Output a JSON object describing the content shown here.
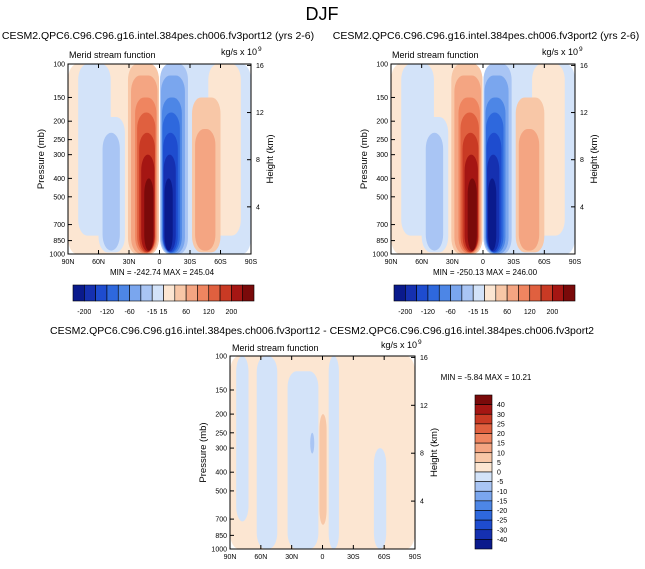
{
  "figure": {
    "title": "DJF"
  },
  "colormaps": {
    "top": [
      "#0a1a8c",
      "#1530b0",
      "#1e4ccf",
      "#2e68dd",
      "#4d86e6",
      "#7aa6ee",
      "#a9c5f4",
      "#d3e3f9",
      "#fce6d2",
      "#f8c7a7",
      "#f4a582",
      "#ef8560",
      "#e0603f",
      "#c93a24",
      "#a51613",
      "#7a0a0a"
    ],
    "diff": [
      "#0a1a8c",
      "#1530b0",
      "#1e4ccf",
      "#2e68dd",
      "#4d86e6",
      "#7aa6ee",
      "#a9c5f4",
      "#d3e3f9",
      "#fce6d2",
      "#f8c7a7",
      "#f4a582",
      "#ef8560",
      "#e0603f",
      "#c93a24",
      "#a51613",
      "#7a0a0a"
    ]
  },
  "chart_data": [
    {
      "type": "contour",
      "id": "panel1",
      "title": "CESM2.QPC6.C96.C96.g16.intel.384pes.ch006.fv3port12 (yrs 2-6)",
      "subtitle_left": "Merid stream function",
      "units": "kg/s x 10",
      "units_exp": "9",
      "xlabel": "",
      "ylabel": "Pressure (mb)",
      "ylabel_right": "Height (km)",
      "x_ticks": [
        "90N",
        "60N",
        "30N",
        "0",
        "30S",
        "60S",
        "90S"
      ],
      "x_tick_values": [
        90,
        60,
        30,
        0,
        -30,
        -60,
        -90
      ],
      "y_ticks": [
        "100",
        "150",
        "200",
        "250",
        "300",
        "400",
        "500",
        "700",
        "850",
        "1000"
      ],
      "y_tick_values": [
        100,
        150,
        200,
        250,
        300,
        400,
        500,
        700,
        850,
        1000
      ],
      "yr_ticks": [
        "4",
        "8",
        "12",
        "16"
      ],
      "yr_tick_values": [
        4,
        8,
        12,
        16
      ],
      "ylim": [
        1000,
        100
      ],
      "xlim": [
        90,
        -90
      ],
      "min": "-242.74",
      "max": "245.04",
      "stats": "MIN = -242.74  MAX = 245.04",
      "colorbar_labels": [
        "-200",
        "-120",
        "-60",
        "-15",
        "15",
        "60",
        "120",
        "200"
      ],
      "cells": [
        {
          "lat_min": 90,
          "lat_max": 0.5,
          "lev_top": 100,
          "lev_bot": 1000,
          "level": 8
        },
        {
          "lat_min": -0.5,
          "lat_max": -90,
          "lev_top": 100,
          "lev_bot": 1000,
          "level": 7
        },
        {
          "lat_min": 80,
          "lat_max": 48,
          "lev_top": 100,
          "lev_bot": 800,
          "level": 7
        },
        {
          "lat_min": -48,
          "lat_max": -80,
          "lev_top": 100,
          "lev_bot": 800,
          "level": 8
        },
        {
          "lat_min": 60,
          "lat_max": 34,
          "lev_top": 190,
          "lev_bot": 980,
          "level": 7
        },
        {
          "lat_min": 56,
          "lat_max": 39,
          "lev_top": 230,
          "lev_bot": 960,
          "level": 6
        },
        {
          "lat_min": -32,
          "lat_max": -60,
          "lev_top": 150,
          "lev_bot": 980,
          "level": 9
        },
        {
          "lat_min": -35,
          "lat_max": -55,
          "lev_top": 220,
          "lev_bot": 960,
          "level": 10
        },
        {
          "lat_min": 31,
          "lat_max": 0.5,
          "lev_top": 100,
          "lev_bot": 1000,
          "level": 9
        },
        {
          "lat_min": 28,
          "lat_max": 2,
          "lev_top": 115,
          "lev_bot": 995,
          "level": 10
        },
        {
          "lat_min": 24,
          "lat_max": 3,
          "lev_top": 150,
          "lev_bot": 990,
          "level": 11
        },
        {
          "lat_min": 22,
          "lat_max": 4,
          "lev_top": 180,
          "lev_bot": 985,
          "level": 12
        },
        {
          "lat_min": 20,
          "lat_max": 4.5,
          "lev_top": 230,
          "lev_bot": 980,
          "level": 13
        },
        {
          "lat_min": 18,
          "lat_max": 5,
          "lev_top": 300,
          "lev_bot": 970,
          "level": 14
        },
        {
          "lat_min": 15,
          "lat_max": 6,
          "lev_top": 400,
          "lev_bot": 960,
          "level": 15
        },
        {
          "lat_min": -0.5,
          "lat_max": -28,
          "lev_top": 100,
          "lev_bot": 1000,
          "level": 6
        },
        {
          "lat_min": -1.5,
          "lat_max": -25,
          "lev_top": 115,
          "lev_bot": 995,
          "level": 5
        },
        {
          "lat_min": -2.5,
          "lat_max": -22,
          "lev_top": 150,
          "lev_bot": 990,
          "level": 4
        },
        {
          "lat_min": -3,
          "lat_max": -20,
          "lev_top": 180,
          "lev_bot": 985,
          "level": 3
        },
        {
          "lat_min": -3.5,
          "lat_max": -18,
          "lev_top": 230,
          "lev_bot": 980,
          "level": 2
        },
        {
          "lat_min": -4,
          "lat_max": -16,
          "lev_top": 300,
          "lev_bot": 970,
          "level": 1
        },
        {
          "lat_min": -5,
          "lat_max": -13,
          "lev_top": 400,
          "lev_bot": 960,
          "level": 0
        }
      ]
    },
    {
      "type": "contour",
      "id": "panel2",
      "title": "CESM2.QPC6.C96.C96.g16.intel.384pes.ch006.fv3port2 (yrs 2-6)",
      "subtitle_left": "Merid stream function",
      "units": "kg/s x 10",
      "units_exp": "9",
      "xlabel": "",
      "ylabel": "Pressure (mb)",
      "ylabel_right": "Height (km)",
      "x_ticks": [
        "90N",
        "60N",
        "30N",
        "0",
        "30S",
        "60S",
        "90S"
      ],
      "x_tick_values": [
        90,
        60,
        30,
        0,
        -30,
        -60,
        -90
      ],
      "y_ticks": [
        "100",
        "150",
        "200",
        "250",
        "300",
        "400",
        "500",
        "700",
        "850",
        "1000"
      ],
      "y_tick_values": [
        100,
        150,
        200,
        250,
        300,
        400,
        500,
        700,
        850,
        1000
      ],
      "yr_ticks": [
        "4",
        "8",
        "12",
        "16"
      ],
      "yr_tick_values": [
        4,
        8,
        12,
        16
      ],
      "ylim": [
        1000,
        100
      ],
      "xlim": [
        90,
        -90
      ],
      "min": "-250.13",
      "max": "246.00",
      "stats": "MIN = -250.13  MAX = 246.00",
      "colorbar_labels": [
        "-200",
        "-120",
        "-60",
        "-15",
        "15",
        "60",
        "120",
        "200"
      ],
      "cells": [
        {
          "lat_min": 90,
          "lat_max": 0.5,
          "lev_top": 100,
          "lev_bot": 1000,
          "level": 8
        },
        {
          "lat_min": -0.5,
          "lat_max": -90,
          "lev_top": 100,
          "lev_bot": 1000,
          "level": 7
        },
        {
          "lat_min": 80,
          "lat_max": 48,
          "lev_top": 100,
          "lev_bot": 800,
          "level": 7
        },
        {
          "lat_min": -48,
          "lat_max": -80,
          "lev_top": 100,
          "lev_bot": 800,
          "level": 8
        },
        {
          "lat_min": 60,
          "lat_max": 34,
          "lev_top": 190,
          "lev_bot": 980,
          "level": 7
        },
        {
          "lat_min": 56,
          "lat_max": 39,
          "lev_top": 230,
          "lev_bot": 960,
          "level": 6
        },
        {
          "lat_min": -32,
          "lat_max": -60,
          "lev_top": 150,
          "lev_bot": 980,
          "level": 9
        },
        {
          "lat_min": -35,
          "lat_max": -55,
          "lev_top": 220,
          "lev_bot": 960,
          "level": 10
        },
        {
          "lat_min": 31,
          "lat_max": 0.5,
          "lev_top": 100,
          "lev_bot": 1000,
          "level": 9
        },
        {
          "lat_min": 28,
          "lat_max": 2,
          "lev_top": 115,
          "lev_bot": 995,
          "level": 10
        },
        {
          "lat_min": 24,
          "lat_max": 3,
          "lev_top": 150,
          "lev_bot": 990,
          "level": 11
        },
        {
          "lat_min": 22,
          "lat_max": 4,
          "lev_top": 180,
          "lev_bot": 985,
          "level": 12
        },
        {
          "lat_min": 20,
          "lat_max": 4.5,
          "lev_top": 230,
          "lev_bot": 980,
          "level": 13
        },
        {
          "lat_min": 18,
          "lat_max": 5,
          "lev_top": 300,
          "lev_bot": 970,
          "level": 14
        },
        {
          "lat_min": 15,
          "lat_max": 6,
          "lev_top": 400,
          "lev_bot": 960,
          "level": 15
        },
        {
          "lat_min": -0.5,
          "lat_max": -28,
          "lev_top": 100,
          "lev_bot": 1000,
          "level": 6
        },
        {
          "lat_min": -1.5,
          "lat_max": -25,
          "lev_top": 115,
          "lev_bot": 995,
          "level": 5
        },
        {
          "lat_min": -2.5,
          "lat_max": -22,
          "lev_top": 150,
          "lev_bot": 990,
          "level": 4
        },
        {
          "lat_min": -3,
          "lat_max": -20,
          "lev_top": 180,
          "lev_bot": 985,
          "level": 3
        },
        {
          "lat_min": -3.5,
          "lat_max": -18,
          "lev_top": 230,
          "lev_bot": 980,
          "level": 2
        },
        {
          "lat_min": -4,
          "lat_max": -16,
          "lev_top": 300,
          "lev_bot": 970,
          "level": 1
        },
        {
          "lat_min": -5,
          "lat_max": -13,
          "lev_top": 400,
          "lev_bot": 960,
          "level": 0
        }
      ]
    },
    {
      "type": "contour",
      "id": "panel3",
      "title": "CESM2.QPC6.C96.C96.g16.intel.384pes.ch006.fv3port12 - CESM2.QPC6.C96.C96.g16.intel.384pes.ch006.fv3port2",
      "subtitle_left": "Merid stream function",
      "units": "kg/s x 10",
      "units_exp": "9",
      "xlabel": "",
      "ylabel": "Pressure (mb)",
      "ylabel_right": "Height (km)",
      "x_ticks": [
        "90N",
        "60N",
        "30N",
        "0",
        "30S",
        "60S",
        "90S"
      ],
      "x_tick_values": [
        90,
        60,
        30,
        0,
        -30,
        -60,
        -90
      ],
      "y_ticks": [
        "100",
        "150",
        "200",
        "250",
        "300",
        "400",
        "500",
        "700",
        "850",
        "1000"
      ],
      "y_tick_values": [
        100,
        150,
        200,
        250,
        300,
        400,
        500,
        700,
        850,
        1000
      ],
      "yr_ticks": [
        "4",
        "8",
        "12",
        "16"
      ],
      "yr_tick_values": [
        4,
        8,
        12,
        16
      ],
      "ylim": [
        1000,
        100
      ],
      "xlim": [
        90,
        -90
      ],
      "min": "-5.84",
      "max": "10.21",
      "stats": "MIN = -5.84  MAX = 10.21",
      "colorbar_labels": [
        "40",
        "30",
        "25",
        "20",
        "15",
        "10",
        "5",
        "0",
        "-5",
        "-10",
        "-15",
        "-20",
        "-25",
        "-30",
        "-40"
      ],
      "cells": [
        {
          "lat_min": 90,
          "lat_max": -90,
          "lev_top": 100,
          "lev_bot": 1000,
          "level": 8
        },
        {
          "lat_min": 84,
          "lat_max": 72,
          "lev_top": 100,
          "lev_bot": 720,
          "level": 7
        },
        {
          "lat_min": 64,
          "lat_max": 44,
          "lev_top": 100,
          "lev_bot": 1000,
          "level": 7
        },
        {
          "lat_min": 34,
          "lat_max": 4,
          "lev_top": 120,
          "lev_bot": 1000,
          "level": 7
        },
        {
          "lat_min": 12,
          "lat_max": 8,
          "lev_top": 250,
          "lev_bot": 320,
          "level": 6
        },
        {
          "lat_min": 3,
          "lat_max": -4,
          "lev_top": 200,
          "lev_bot": 750,
          "level": 9
        },
        {
          "lat_min": -6,
          "lat_max": -16,
          "lev_top": 100,
          "lev_bot": 1000,
          "level": 7
        },
        {
          "lat_min": -50,
          "lat_max": -62,
          "lev_top": 300,
          "lev_bot": 1000,
          "level": 7
        }
      ]
    }
  ]
}
